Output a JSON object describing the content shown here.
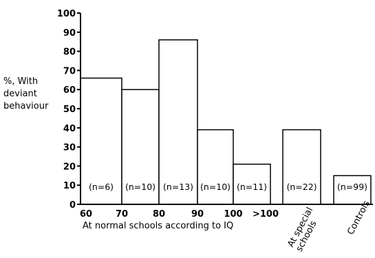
{
  "chart_data": {
    "type": "bar",
    "ylabel": [
      "%, With",
      "deviant",
      "behaviour"
    ],
    "xlabel": "At normal schools according to IQ",
    "ylim": [
      0,
      100
    ],
    "y_ticks": [
      "0",
      "10",
      "20",
      "30",
      "40",
      "50",
      "60",
      "70",
      "80",
      "90",
      "100"
    ],
    "x_ticks": [
      "60",
      "70",
      "80",
      "90",
      "100",
      ">100"
    ],
    "categories": [
      "60-70",
      "70-80",
      "80-90",
      "90-100",
      "100->100",
      "At special schools",
      "Controls"
    ],
    "values": [
      66,
      60,
      86,
      39,
      21,
      39,
      15
    ],
    "n_labels": [
      "(n=6)",
      "(n=10)",
      "(n=13)",
      "(n=10)",
      "(n=11)",
      "(n=22)",
      "(n=99)"
    ],
    "group_labels": {
      "special": [
        "At special",
        "schools"
      ],
      "controls": "Controls"
    },
    "grid": false
  }
}
